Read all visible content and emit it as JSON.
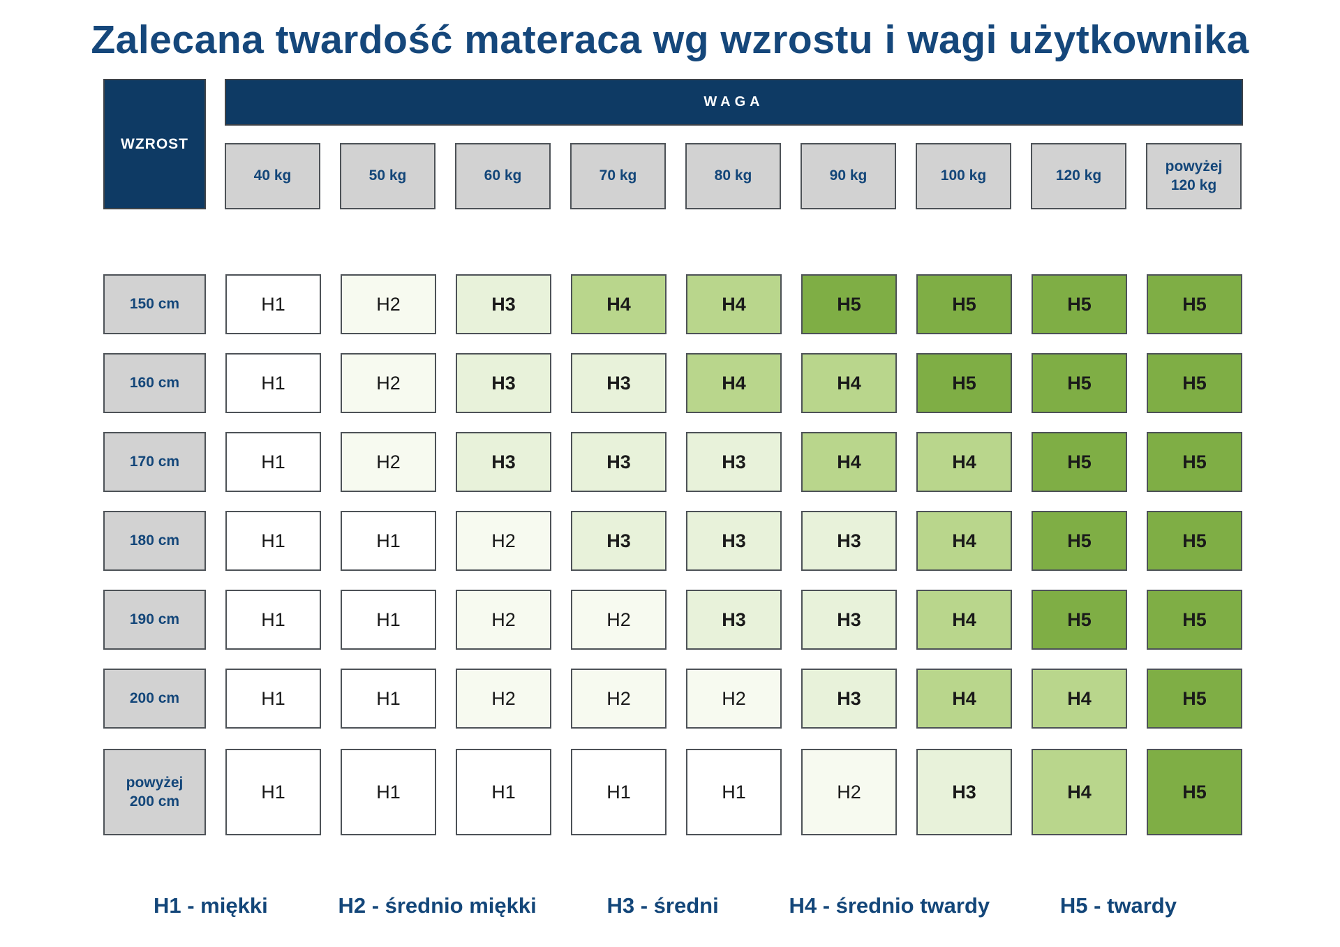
{
  "title": "Zalecana twardość materaca wg wzrostu i wagi użytkownika",
  "chart_data": {
    "type": "heatmap",
    "title": "Zalecana twardość materaca wg wzrostu i wagi użytkownika",
    "columns_header": "WAGA",
    "rows_header": "WZROST",
    "columns": [
      "40 kg",
      "50 kg",
      "60 kg",
      "70 kg",
      "80 kg",
      "90 kg",
      "100 kg",
      "120 kg",
      "powyżej 120 kg"
    ],
    "rows": [
      "150 cm",
      "160 cm",
      "170 cm",
      "180 cm",
      "190 cm",
      "200 cm",
      "powyżej 200 cm"
    ],
    "values": [
      [
        "H1",
        "H2",
        "H3",
        "H4",
        "H4",
        "H5",
        "H5",
        "H5",
        "H5"
      ],
      [
        "H1",
        "H2",
        "H3",
        "H3",
        "H4",
        "H4",
        "H5",
        "H5",
        "H5"
      ],
      [
        "H1",
        "H2",
        "H3",
        "H3",
        "H3",
        "H4",
        "H4",
        "H5",
        "H5"
      ],
      [
        "H1",
        "H1",
        "H2",
        "H3",
        "H3",
        "H3",
        "H4",
        "H5",
        "H5"
      ],
      [
        "H1",
        "H1",
        "H2",
        "H2",
        "H3",
        "H3",
        "H4",
        "H5",
        "H5"
      ],
      [
        "H1",
        "H1",
        "H2",
        "H2",
        "H2",
        "H3",
        "H4",
        "H4",
        "H5"
      ],
      [
        "H1",
        "H1",
        "H1",
        "H1",
        "H1",
        "H2",
        "H3",
        "H4",
        "H5"
      ]
    ],
    "palette": {
      "H1": "#ffffff",
      "H2": "#f7faf0",
      "H3": "#e8f2da",
      "H4": "#b9d68c",
      "H5": "#7fae45"
    },
    "legend": [
      "H1 - miękki",
      "H2 - średnio miękki",
      "H3 - średni",
      "H4 - średnio twardy",
      "H5 - twardy"
    ],
    "legend_position": "bottom"
  },
  "colors": {
    "navy_background": "#0e3a64",
    "title_navy": "#15477b",
    "text_navy": "#134679",
    "header_gray": "#d2d2d2",
    "cell_border": "#4d5257",
    "cell_text": "#1a1a1a"
  }
}
